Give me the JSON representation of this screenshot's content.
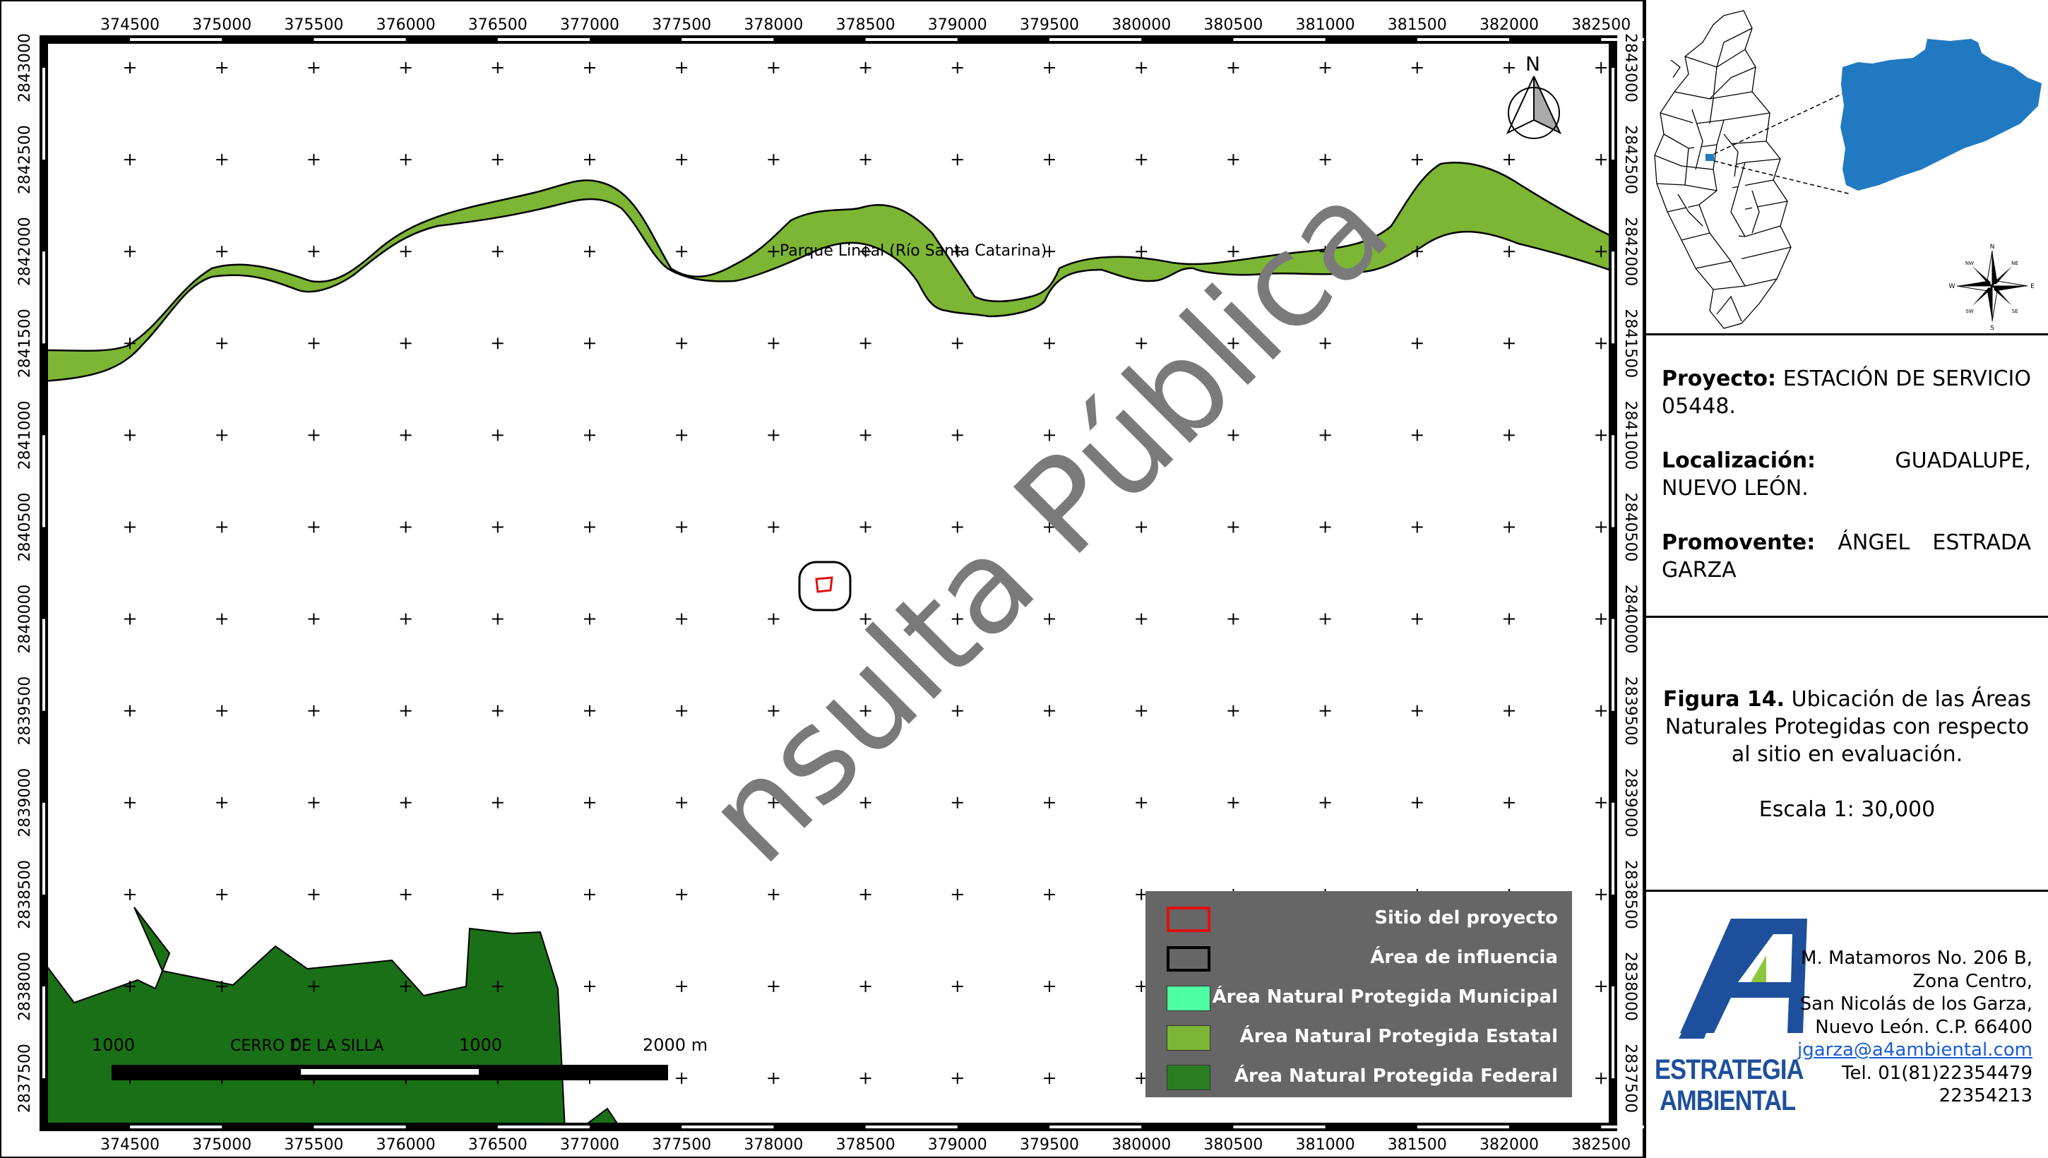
{
  "map": {
    "x_ticks": [
      "374500",
      "375000",
      "375500",
      "376000",
      "376500",
      "377000",
      "377500",
      "378000",
      "378500",
      "379000",
      "379500",
      "380000",
      "380500",
      "381000",
      "381500",
      "382000",
      "382500"
    ],
    "y_ticks": [
      "2843000",
      "2842500",
      "2842000",
      "2841500",
      "2841000",
      "2840500",
      "2840000",
      "2839500",
      "2839000",
      "2838500",
      "2838000",
      "2837500"
    ],
    "river_label": "Parque Lineal (Río Santa Catarina)",
    "mountain_label": "CERRO DE LA SILLA",
    "watermark": "nsulta Pública",
    "north_label": "N",
    "scalebar": {
      "labels": [
        "1000",
        "0",
        "1000",
        "2000 m"
      ]
    },
    "colors": {
      "estatal": "#7db534",
      "federal": "#1a7016",
      "municipal": "#4dffa0",
      "site": "#e01010",
      "legend_bg": "#666666",
      "locator_highlight": "#2179c2"
    }
  },
  "legend": [
    {
      "label": "Sitio del proyecto",
      "swatch": "site"
    },
    {
      "label": "Área de influencia",
      "swatch": "influence"
    },
    {
      "label": "Área Natural Protegida Municipal",
      "swatch": "municipal"
    },
    {
      "label": "Área Natural Protegida Estatal",
      "swatch": "estatal"
    },
    {
      "label": "Área Natural Protegida Federal",
      "swatch": "federal"
    }
  ],
  "locator": {
    "compass_labels": [
      "N",
      "S",
      "E",
      "W",
      "NE",
      "NW",
      "SE",
      "SW"
    ]
  },
  "project": {
    "proyecto_label": "Proyecto:",
    "proyecto_value": " ESTACIÓN DE SERVICIO 05448.",
    "localizacion_label": "Localización:",
    "localizacion_value": " GUADALUPE, NUEVO LEÓN.",
    "promovente_label": "Promovente:",
    "promovente_value": " ÁNGEL ESTRADA GARZA"
  },
  "figure": {
    "number": "Figura 14.",
    "caption": " Ubicación de las Áreas Naturales Protegidas con respecto al sitio en evaluación.",
    "scale": "Escala 1: 30,000"
  },
  "company": {
    "logo_line1": "ESTRATEGIA",
    "logo_line2": "AMBIENTAL",
    "address_lines": [
      "M. Matamoros No. 206 B,",
      "Zona Centro,",
      "San Nicolás de los Garza,",
      "Nuevo León. C.P. 66400"
    ],
    "email": "jgarza@a4ambiental.com",
    "phone_lines": [
      "Tel. 01(81)22354479",
      "22354213"
    ]
  }
}
